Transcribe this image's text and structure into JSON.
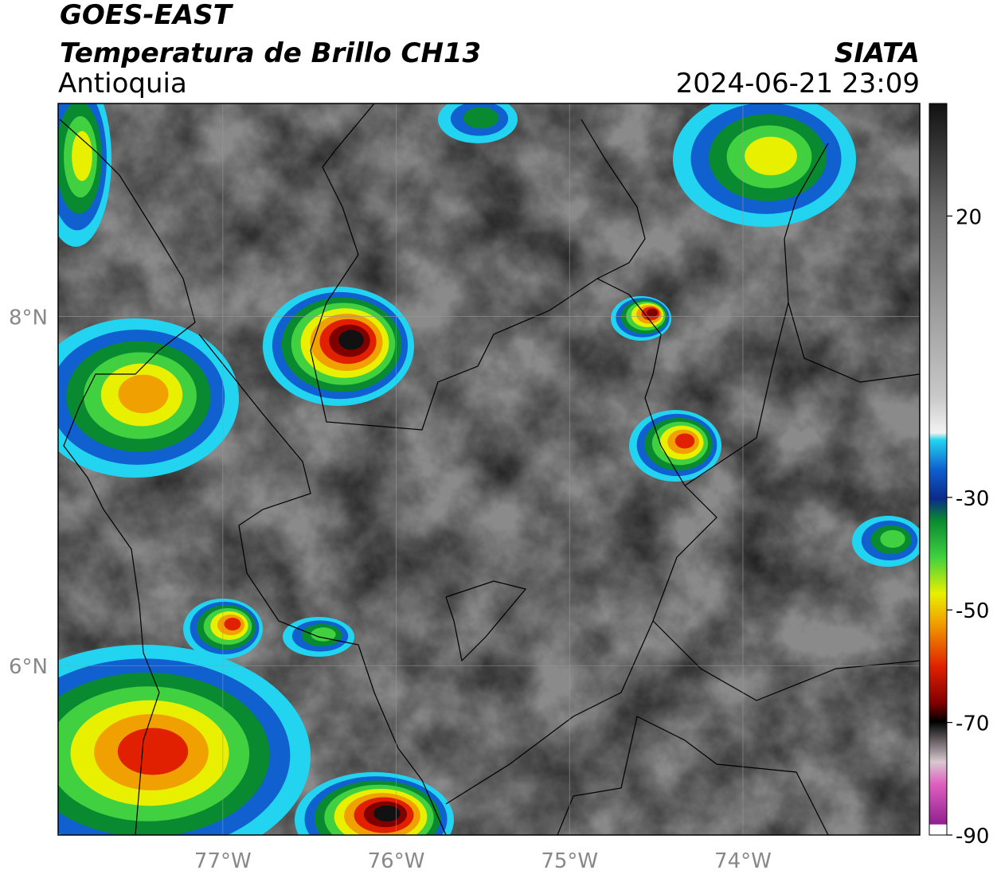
{
  "header": {
    "title": "GOES-EAST",
    "subtitle": "Temperatura de Brillo CH13",
    "region": "Antioquia",
    "source": "SIATA",
    "timestamp": "2024-06-21 23:09"
  },
  "map": {
    "xlim": [
      -77.95,
      -72.98
    ],
    "ylim": [
      5.03,
      9.22
    ],
    "xticks": [
      {
        "value": -77,
        "label": "77°W"
      },
      {
        "value": -76,
        "label": "76°W"
      },
      {
        "value": -75,
        "label": "75°W"
      },
      {
        "value": -74,
        "label": "74°W"
      }
    ],
    "yticks": [
      {
        "value": 6,
        "label": "6°N"
      },
      {
        "value": 8,
        "label": "8°N"
      }
    ]
  },
  "colorbar": {
    "lim": [
      -90,
      40
    ],
    "ticks": [
      20,
      -30,
      -50,
      -70,
      -90
    ]
  }
}
